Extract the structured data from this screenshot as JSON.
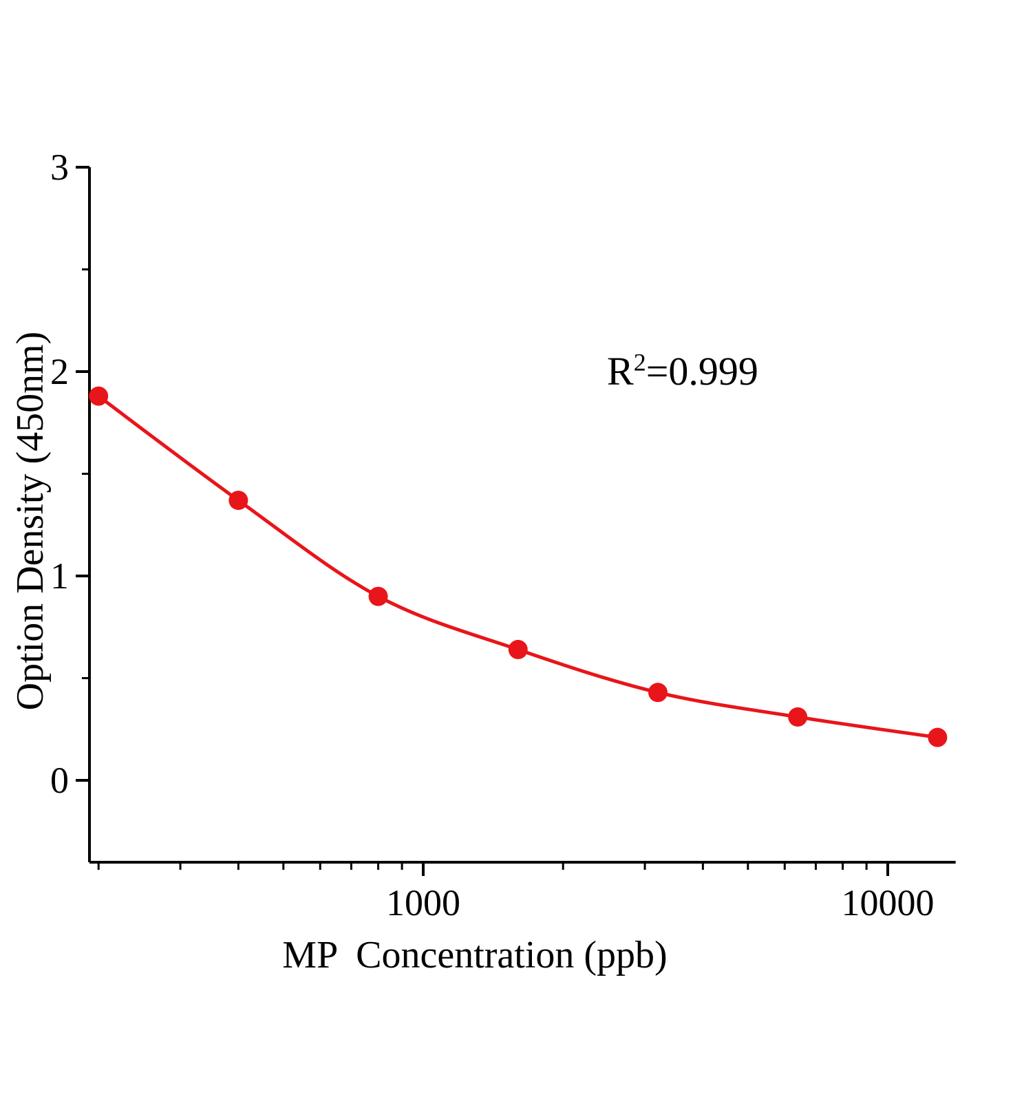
{
  "chart_data": {
    "type": "line",
    "title": "",
    "xlabel": "MP  Concentration (ppb)",
    "ylabel": "Option Density (450nm)",
    "x_scale": "log",
    "x": [
      200,
      400,
      800,
      1600,
      3200,
      6400,
      12800
    ],
    "y": [
      1.88,
      1.37,
      0.9,
      0.64,
      0.43,
      0.31,
      0.21
    ],
    "xlim": [
      190,
      14000
    ],
    "ylim": [
      -0.4,
      3
    ],
    "x_major_ticks": [
      1000,
      10000
    ],
    "x_major_tick_labels": [
      "1000",
      "10000"
    ],
    "x_minor_ticks": [
      200,
      300,
      400,
      500,
      600,
      700,
      800,
      900,
      2000,
      3000,
      4000,
      5000,
      6000,
      7000,
      8000,
      9000
    ],
    "y_major_ticks": [
      0,
      1,
      2,
      3
    ],
    "y_major_tick_labels": [
      "0",
      "1",
      "2",
      "3"
    ],
    "y_minor_ticks": [
      0.5,
      1.5,
      2.5
    ],
    "annotation": {
      "prefix": "R",
      "sup": "2",
      "rest": "=0.999"
    },
    "legend": null,
    "grid": false,
    "line_color": "#e8151a",
    "marker_color": "#e8151a",
    "axis_color": "#000000",
    "background": "#ffffff"
  }
}
